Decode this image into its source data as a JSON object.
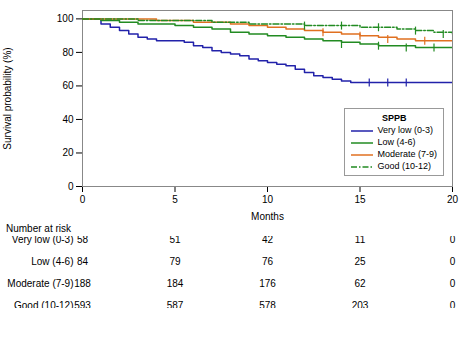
{
  "chart_data": {
    "type": "line",
    "xlabel": "Months",
    "ylabel": "Survival probability (%)",
    "xlim": [
      0,
      20
    ],
    "ylim": [
      0,
      105
    ],
    "xticks": [
      0,
      5,
      10,
      15,
      20
    ],
    "yticks": [
      0,
      20,
      40,
      60,
      80,
      100
    ],
    "legend": "lower right",
    "legend_title": "SPPB",
    "series": [
      {
        "name": "Very low (0-3)",
        "color": "#2222aa",
        "line_style": "solid",
        "x": [
          0,
          0.5,
          1,
          1.5,
          2,
          2.5,
          3,
          3.5,
          4,
          4.5,
          5,
          5.5,
          6,
          6.5,
          7,
          7.5,
          8,
          8.5,
          9,
          9.5,
          10,
          10.5,
          11,
          11.5,
          12,
          12.5,
          13,
          13.5,
          14,
          14.5,
          15,
          16,
          17,
          18,
          19,
          20
        ],
        "values": [
          100,
          100,
          97,
          95,
          93,
          91,
          89,
          88,
          87,
          87,
          87,
          86,
          84,
          83,
          81,
          80,
          79,
          78,
          76,
          75,
          74,
          73,
          72,
          70,
          68,
          66,
          65,
          64,
          63,
          62,
          62,
          62,
          62,
          62,
          62,
          62
        ],
        "censor_x": [
          15.5,
          16.5,
          17.5
        ],
        "censor_values": [
          62,
          62,
          62
        ]
      },
      {
        "name": "Low (4-6)",
        "color": "#228B22",
        "line_style": "solid",
        "x": [
          0,
          1,
          2,
          3,
          4,
          5,
          6,
          7,
          8,
          9,
          10,
          11,
          12,
          13,
          14,
          15,
          16,
          17,
          18,
          19,
          20
        ],
        "values": [
          100,
          99,
          98,
          97,
          97,
          96,
          95,
          94,
          92,
          91,
          90,
          89,
          88,
          87,
          86,
          85,
          84,
          84,
          83,
          83,
          83
        ],
        "censor_x": [
          14,
          16,
          17.5,
          19
        ],
        "censor_values": [
          85,
          84,
          83,
          83
        ]
      },
      {
        "name": "Moderate (7-9)",
        "color": "#e07020",
        "line_style": "solid",
        "x": [
          0,
          1,
          2,
          3,
          4,
          5,
          6,
          7,
          8,
          9,
          10,
          11,
          12,
          13,
          14,
          15,
          16,
          17,
          18,
          19,
          20
        ],
        "values": [
          100,
          100,
          100,
          100,
          99,
          99,
          98,
          98,
          97,
          96,
          95,
          94,
          93,
          92,
          91,
          90,
          89,
          88,
          87,
          87,
          87
        ],
        "censor_x": [
          13,
          15,
          16.5,
          18.5
        ],
        "censor_values": [
          92,
          90,
          88,
          87
        ]
      },
      {
        "name": "Good (10-12)",
        "color": "#228B22",
        "line_style": "dashdot",
        "x": [
          0,
          1,
          2,
          3,
          4,
          5,
          6,
          7,
          8,
          9,
          10,
          11,
          12,
          13,
          14,
          15,
          16,
          17,
          18,
          19,
          20
        ],
        "values": [
          100,
          100,
          100,
          99,
          99,
          99,
          99,
          98,
          98,
          97,
          97,
          97,
          96,
          96,
          96,
          95,
          95,
          94,
          93,
          92,
          91
        ],
        "censor_x": [
          12,
          14,
          16,
          18,
          19.5
        ],
        "censor_values": [
          96,
          96,
          95,
          93,
          91
        ]
      }
    ],
    "risk_table": {
      "title": "Number at risk",
      "x": [
        0,
        5,
        10,
        15,
        20
      ],
      "groups": [
        "Very low (0-3)",
        "Low (4-6)",
        "Moderate (7-9)",
        "Good (10-12)"
      ],
      "counts": [
        [
          58,
          51,
          42,
          11,
          0
        ],
        [
          84,
          79,
          76,
          25,
          0
        ],
        [
          188,
          184,
          176,
          62,
          0
        ],
        [
          593,
          587,
          578,
          203,
          0
        ]
      ]
    }
  }
}
